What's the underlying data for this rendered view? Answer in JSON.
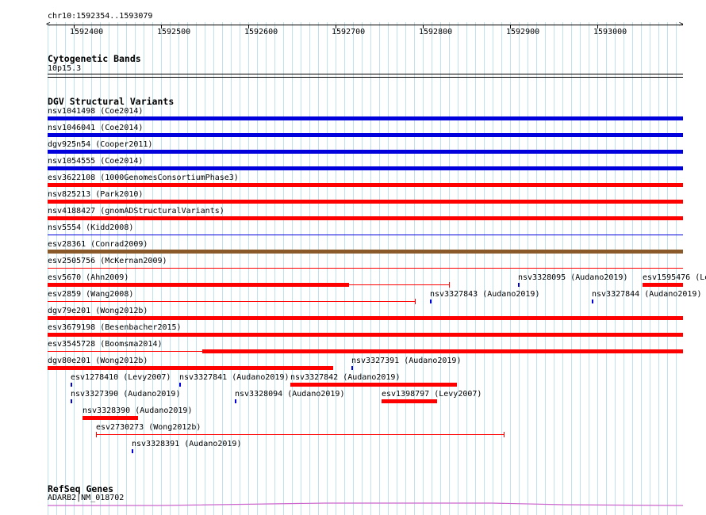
{
  "browser": {
    "location": "chr10:1592354..1593079",
    "ruler_labels": [
      "1592400",
      "1592500",
      "1592600",
      "1592700",
      "1592800",
      "1592900",
      "1593000"
    ],
    "colors": {
      "blue": "#0000dd",
      "red": "#ff0000",
      "brown": "#8b5a2b",
      "grid": "#bfe3ee",
      "refseq": "#cc66cc"
    }
  },
  "cytobands": {
    "title": "Cytogenetic Bands",
    "band_label": "10p15.3"
  },
  "dgv": {
    "title": "DGV Structural Variants",
    "features": [
      {
        "label": "nsv1041498 (Coe2014)"
      },
      {
        "label": "nsv1046041 (Coe2014)"
      },
      {
        "label": "dgv925n54 (Cooper2011)"
      },
      {
        "label": "nsv1054555 (Coe2014)"
      },
      {
        "label": "esv3622108 (1000GenomesConsortiumPhase3)"
      },
      {
        "label": "nsv825213 (Park2010)"
      },
      {
        "label": "nsv4188427 (gnomADStructuralVariants)"
      },
      {
        "label": "nsv5554 (Kidd2008)"
      },
      {
        "label": "esv28361 (Conrad2009)"
      },
      {
        "label": "esv2505756 (McKernan2009)"
      },
      {
        "label": "esv5670 (Ahn2009)"
      },
      {
        "label": "nsv3328095 (Audano2019)"
      },
      {
        "label": "esv1595476 (Le"
      },
      {
        "label": "esv2859 (Wang2008)"
      },
      {
        "label": "nsv3327843 (Audano2019)"
      },
      {
        "label": "nsv3327844 (Audano2019)"
      },
      {
        "label": "dgv79e201 (Wong2012b)"
      },
      {
        "label": "esv3679198 (Besenbacher2015)"
      },
      {
        "label": "esv3545728 (Boomsma2014)"
      },
      {
        "label": "dgv80e201 (Wong2012b)"
      },
      {
        "label": "nsv3327391 (Audano2019)"
      },
      {
        "label": "esv1278410 (Levy2007)"
      },
      {
        "label": "nsv3327841 (Audano2019)"
      },
      {
        "label": "nsv3327842 (Audano2019)"
      },
      {
        "label": "nsv3327390 (Audano2019)"
      },
      {
        "label": "nsv3328094 (Audano2019)"
      },
      {
        "label": "esv1398797 (Levy2007)"
      },
      {
        "label": "nsv3328390 (Audano2019)"
      },
      {
        "label": "esv2730273 (Wong2012b)"
      },
      {
        "label": "nsv3328391 (Audano2019)"
      }
    ]
  },
  "refseq": {
    "title": "RefSeq Genes",
    "gene_label": "ADARB2|NM_018702"
  }
}
